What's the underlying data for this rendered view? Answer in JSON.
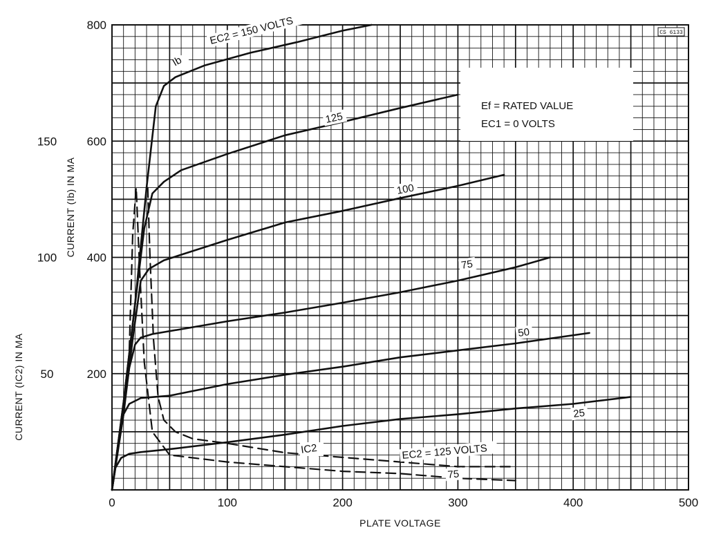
{
  "chart_data": {
    "type": "line",
    "title": "",
    "xlabel": "PLATE VOLTAGE",
    "ylabel": "CURRENT (Ib) IN MA",
    "ylabel_secondary": "CURRENT (IC2) IN MA",
    "xlim": [
      0,
      500
    ],
    "ylim": [
      0,
      800
    ],
    "ylim_secondary": [
      0,
      200
    ],
    "x_ticks": [
      "0",
      "100",
      "200",
      "300",
      "400",
      "500"
    ],
    "y_ticks": [
      "200",
      "400",
      "600",
      "800"
    ],
    "y_ticks_secondary": [
      "50",
      "100",
      "150"
    ],
    "grid": true,
    "stamp": "CS 6133",
    "legend": {
      "placement": "top-right",
      "lines": [
        "Ef = RATED VALUE",
        "EC1 = 0 VOLTS"
      ]
    },
    "series": [
      {
        "name": "150",
        "label": "EC2 = 150 VOLTS",
        "curve_label": "Ib",
        "style": "solid",
        "x": [
          0,
          10,
          20,
          30,
          38,
          45,
          55,
          80,
          120,
          160,
          200,
          225
        ],
        "y": [
          0,
          150,
          320,
          520,
          660,
          695,
          710,
          730,
          752,
          770,
          790,
          800
        ]
      },
      {
        "name": "125",
        "label": "125",
        "style": "solid",
        "x": [
          0,
          10,
          20,
          28,
          35,
          45,
          60,
          100,
          150,
          200,
          250,
          300
        ],
        "y": [
          0,
          150,
          320,
          450,
          510,
          530,
          550,
          578,
          610,
          633,
          657,
          680
        ]
      },
      {
        "name": "100",
        "label": "100",
        "style": "solid",
        "x": [
          0,
          10,
          18,
          25,
          32,
          45,
          100,
          150,
          200,
          250,
          300,
          340
        ],
        "y": [
          0,
          130,
          260,
          360,
          380,
          395,
          430,
          460,
          480,
          502,
          523,
          542
        ]
      },
      {
        "name": "75",
        "label": "75",
        "style": "solid",
        "x": [
          0,
          8,
          15,
          20,
          25,
          35,
          100,
          150,
          200,
          250,
          300,
          350,
          380
        ],
        "y": [
          0,
          110,
          210,
          250,
          262,
          268,
          290,
          305,
          322,
          340,
          360,
          383,
          400
        ]
      },
      {
        "name": "50",
        "label": "50",
        "style": "solid",
        "x": [
          0,
          6,
          10,
          15,
          25,
          50,
          100,
          150,
          200,
          250,
          300,
          350,
          414
        ],
        "y": [
          0,
          80,
          130,
          148,
          158,
          162,
          182,
          198,
          212,
          228,
          240,
          252,
          270
        ]
      },
      {
        "name": "25",
        "label": "25",
        "style": "solid",
        "x": [
          0,
          3,
          8,
          15,
          25,
          50,
          100,
          150,
          200,
          250,
          300,
          350,
          400,
          450
        ],
        "y": [
          0,
          38,
          55,
          62,
          65,
          70,
          82,
          95,
          110,
          122,
          130,
          140,
          148,
          160
        ]
      },
      {
        "name": "IC2, EC2 = 125",
        "label": "EC2 = 125 VOLTS",
        "curve_label": "IC2",
        "style": "dashed",
        "axis": "secondary",
        "x": [
          31,
          33,
          36,
          40,
          45,
          55,
          70,
          100,
          150,
          200,
          250,
          300,
          350
        ],
        "y": [
          130,
          100,
          65,
          40,
          30,
          25,
          22,
          20,
          16,
          14,
          12,
          10,
          10
        ]
      },
      {
        "name": "IC2, EC2 = 75",
        "label": "75",
        "style": "dashed",
        "axis": "secondary",
        "x": [
          15,
          18,
          21,
          24,
          28,
          35,
          50,
          100,
          150,
          200,
          250,
          300,
          350
        ],
        "y": [
          60,
          110,
          130,
          95,
          55,
          25,
          15,
          12,
          10,
          8,
          7,
          5,
          4
        ]
      }
    ]
  }
}
